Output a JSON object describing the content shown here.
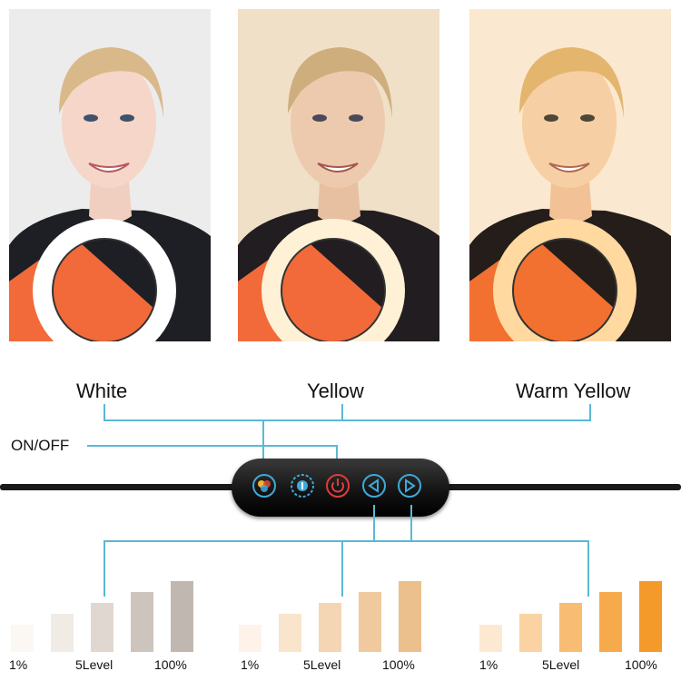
{
  "modes": [
    {
      "label": "White",
      "color": "#ffffff"
    },
    {
      "label": "Yellow",
      "color": "#fff1d6"
    },
    {
      "label": "Warm Yellow",
      "color": "#ffd9a0"
    }
  ],
  "power_label": "ON/OFF",
  "controls": [
    {
      "icon": "color-switch-icon"
    },
    {
      "icon": "brightness-icon"
    },
    {
      "icon": "power-icon"
    },
    {
      "icon": "brightness-down-icon"
    },
    {
      "icon": "brightness-up-icon"
    }
  ],
  "brightness_scales": [
    {
      "mode": "White",
      "levels": [
        "1%",
        "5Level",
        "100%"
      ],
      "bar_colors": [
        "#fbf8f4",
        "#f0ebe5",
        "#e0d8d0",
        "#cdc5bd",
        "#c0b8b0"
      ]
    },
    {
      "mode": "Yellow",
      "levels": [
        "1%",
        "5Level",
        "100%"
      ],
      "bar_colors": [
        "#fdf3e8",
        "#f9e4cc",
        "#f4d6b4",
        "#f0ca9e",
        "#ecc08d"
      ]
    },
    {
      "mode": "Warm Yellow",
      "levels": [
        "1%",
        "5Level",
        "100%"
      ],
      "bar_colors": [
        "#fde9d2",
        "#fbd3a2",
        "#f8bc72",
        "#f6aa4c",
        "#f49a2a"
      ]
    }
  ]
}
